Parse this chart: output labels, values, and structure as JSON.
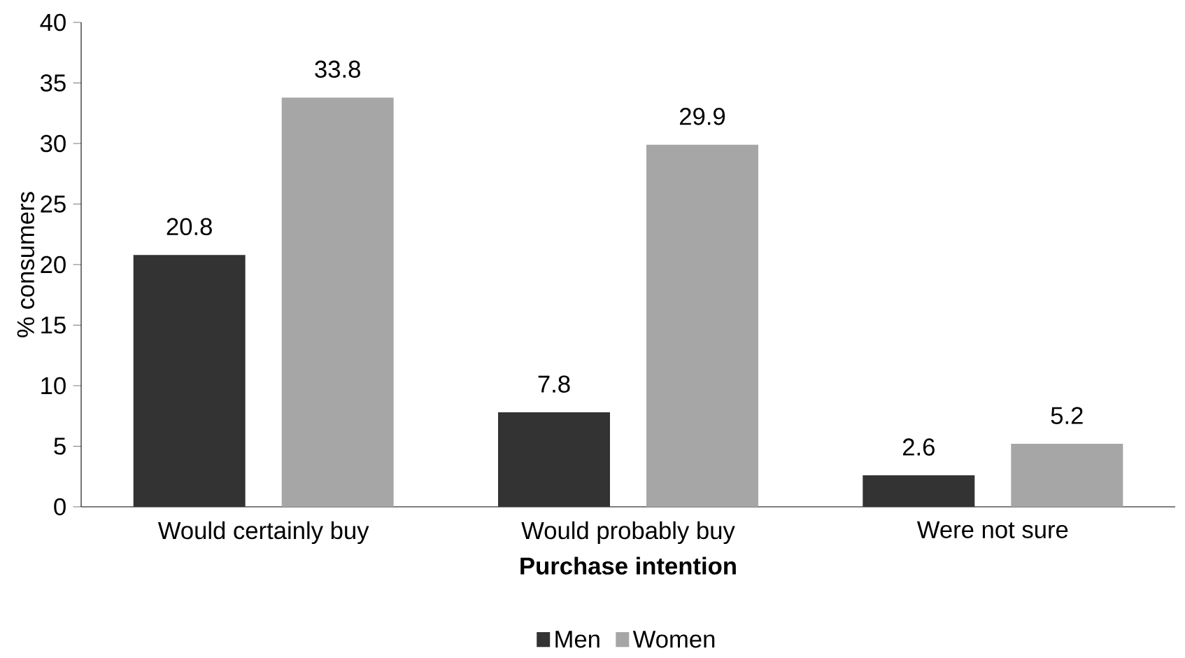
{
  "chart_data": {
    "type": "bar",
    "xlabel": "**Purchase intention**",
    "ylabel": "% consumers",
    "categories": [
      "Would certainly buy",
      "Would probably  buy",
      "Were not sure"
    ],
    "series": [
      {
        "name": "Men",
        "color": "#333333",
        "values": [
          20.8,
          7.8,
          2.6
        ]
      },
      {
        "name": "Women",
        "color": "#a6a6a6",
        "values": [
          33.8,
          29.9,
          5.2
        ]
      }
    ],
    "ylim": [
      0,
      40
    ],
    "yticks": [
      0,
      5,
      10,
      15,
      20,
      25,
      30,
      35,
      40
    ],
    "grid": false,
    "legend": "bottom",
    "data_labels": true
  }
}
